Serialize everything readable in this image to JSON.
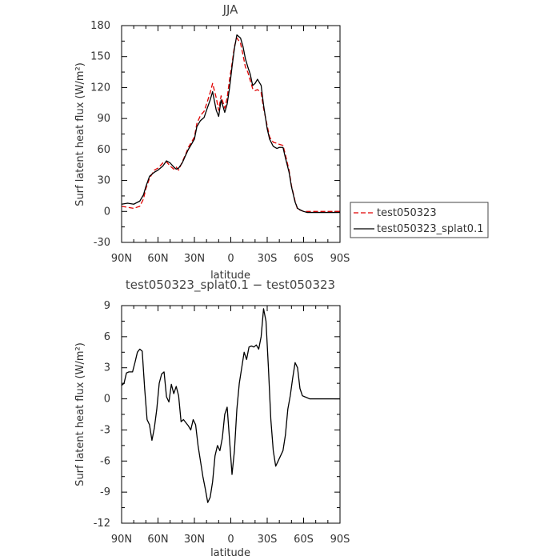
{
  "chart_data": [
    {
      "type": "line",
      "title": "JJA",
      "xlabel": "latitude",
      "ylabel": "Surf latent heat flux (W/m²)",
      "xlim": [
        90,
        -90
      ],
      "ylim": [
        -30,
        180
      ],
      "xticks": [
        90,
        60,
        30,
        0,
        -30,
        -60,
        -90
      ],
      "xtick_labels": [
        "90N",
        "60N",
        "30N",
        "0",
        "30S",
        "60S",
        "90S"
      ],
      "yticks": [
        -30,
        0,
        30,
        60,
        90,
        120,
        150,
        180
      ],
      "ytick_labels": [
        "-30",
        "0",
        "30",
        "60",
        "90",
        "120",
        "150",
        "180"
      ],
      "legend_position": "right",
      "series": [
        {
          "name": "test050323",
          "color": "#e00000",
          "style": "dashed",
          "x": [
            90,
            85,
            80,
            75,
            72,
            70,
            67,
            63,
            60,
            56,
            53,
            50,
            47,
            45,
            43,
            40,
            37,
            35,
            32,
            30,
            28,
            25,
            22,
            20,
            17,
            15,
            12,
            10,
            8,
            5,
            3,
            1,
            -1,
            -3,
            -5,
            -8,
            -10,
            -12,
            -14,
            -16,
            -18,
            -20,
            -22,
            -25,
            -27,
            -30,
            -32,
            -35,
            -38,
            -40,
            -43,
            -45,
            -48,
            -50,
            -53,
            -55,
            -58,
            -60,
            -63,
            -65,
            -68,
            -70,
            -73,
            -75,
            -78,
            -80,
            -85,
            -90
          ],
          "y": [
            5,
            4,
            3,
            5,
            12,
            22,
            32,
            40,
            42,
            47,
            48,
            44,
            41,
            43,
            40,
            48,
            56,
            62,
            68,
            72,
            85,
            93,
            97,
            104,
            115,
            124,
            110,
            98,
            112,
            100,
            110,
            128,
            143,
            160,
            168,
            163,
            152,
            140,
            135,
            127,
            119,
            117,
            118,
            115,
            100,
            83,
            72,
            67,
            66,
            65,
            64,
            55,
            40,
            25,
            10,
            2,
            1,
            0,
            0,
            0,
            0,
            0,
            0,
            0,
            0,
            0,
            0,
            0
          ]
        },
        {
          "name": "test050323_splat0.1",
          "color": "#000000",
          "style": "solid",
          "x": [
            90,
            85,
            80,
            75,
            72,
            70,
            67,
            63,
            60,
            56,
            53,
            50,
            47,
            45,
            43,
            40,
            37,
            35,
            32,
            30,
            28,
            25,
            22,
            20,
            17,
            15,
            12,
            10,
            8,
            5,
            3,
            1,
            -1,
            -3,
            -5,
            -8,
            -10,
            -12,
            -14,
            -16,
            -18,
            -20,
            -22,
            -25,
            -27,
            -30,
            -32,
            -35,
            -38,
            -40,
            -43,
            -45,
            -48,
            -50,
            -53,
            -55,
            -58,
            -60,
            -63,
            -65,
            -68,
            -70,
            -73,
            -75,
            -78,
            -80,
            -85,
            -90
          ],
          "y": [
            7,
            8,
            7,
            10,
            16,
            24,
            34,
            38,
            40,
            44,
            49,
            47,
            43,
            41,
            42,
            47,
            55,
            60,
            66,
            70,
            82,
            88,
            91,
            98,
            108,
            116,
            98,
            92,
            108,
            96,
            104,
            120,
            140,
            158,
            171,
            168,
            160,
            148,
            140,
            133,
            122,
            124,
            128,
            122,
            103,
            80,
            70,
            63,
            61,
            62,
            62,
            52,
            38,
            24,
            9,
            3,
            1,
            0,
            -1,
            -1,
            -1,
            -1,
            -1,
            -1,
            -1,
            -1,
            -1,
            -1
          ]
        }
      ]
    },
    {
      "type": "line",
      "title": "test050323_splat0.1 − test050323",
      "xlabel": "latitude",
      "ylabel": "Surf latent heat flux (W/m²)",
      "xlim": [
        90,
        -90
      ],
      "ylim": [
        -12,
        9
      ],
      "xticks": [
        90,
        60,
        30,
        0,
        -30,
        -60,
        -90
      ],
      "xtick_labels": [
        "90N",
        "60N",
        "30N",
        "0",
        "30S",
        "60S",
        "90S"
      ],
      "yticks": [
        -12,
        -9,
        -6,
        -3,
        0,
        3,
        6,
        9
      ],
      "ytick_labels": [
        "-12",
        "-9",
        "-6",
        "-3",
        "0",
        "3",
        "6",
        "9"
      ],
      "series": [
        {
          "color": "#000000",
          "style": "solid",
          "x": [
            90,
            88,
            86,
            84,
            81,
            79,
            77,
            75,
            73,
            71,
            69,
            67,
            65,
            63,
            61,
            59,
            57,
            55,
            53,
            51,
            49,
            47,
            45,
            43,
            41,
            39,
            37,
            35,
            33,
            31,
            29,
            27,
            25,
            23,
            21,
            19,
            17,
            15,
            13,
            11,
            9,
            7,
            5,
            3,
            1,
            -1,
            -3,
            -5,
            -7,
            -9,
            -11,
            -13,
            -15,
            -17,
            -19,
            -21,
            -23,
            -25,
            -27,
            -29,
            -31,
            -33,
            -35,
            -37,
            -39,
            -41,
            -43,
            -45,
            -47,
            -49,
            -51,
            -53,
            -55,
            -57,
            -59,
            -61,
            -63,
            -65,
            -67,
            -69,
            -71,
            -73,
            -75,
            -77,
            -79,
            -81,
            -83,
            -85,
            -88,
            -90
          ],
          "y": [
            1.3,
            1.5,
            2.5,
            2.6,
            2.6,
            3.5,
            4.5,
            4.8,
            4.6,
            1.0,
            -2.0,
            -2.5,
            -4.0,
            -2.8,
            -1.0,
            1.5,
            2.4,
            2.6,
            0.2,
            -0.3,
            1.4,
            0.5,
            1.2,
            0.3,
            -2.2,
            -2.0,
            -2.3,
            -2.6,
            -3.0,
            -2.0,
            -2.5,
            -4.5,
            -6.0,
            -7.5,
            -8.7,
            -10.0,
            -9.5,
            -8.0,
            -5.5,
            -4.5,
            -5.0,
            -3.8,
            -1.5,
            -0.8,
            -4.0,
            -7.3,
            -5.0,
            -1.0,
            1.5,
            3.0,
            4.5,
            3.8,
            5.0,
            5.1,
            5.0,
            5.2,
            4.8,
            6.0,
            8.7,
            7.5,
            3.0,
            -2.0,
            -5.0,
            -6.5,
            -6.0,
            -5.5,
            -5.0,
            -3.5,
            -1.0,
            0.3,
            2.0,
            3.5,
            3.0,
            1.0,
            0.3,
            0.2,
            0.1,
            0.0,
            0.0,
            0.0,
            0.0,
            0.0,
            0.0,
            0.0,
            0.0,
            0.0,
            0.0,
            0.0,
            0.0,
            0.0
          ]
        }
      ]
    }
  ]
}
